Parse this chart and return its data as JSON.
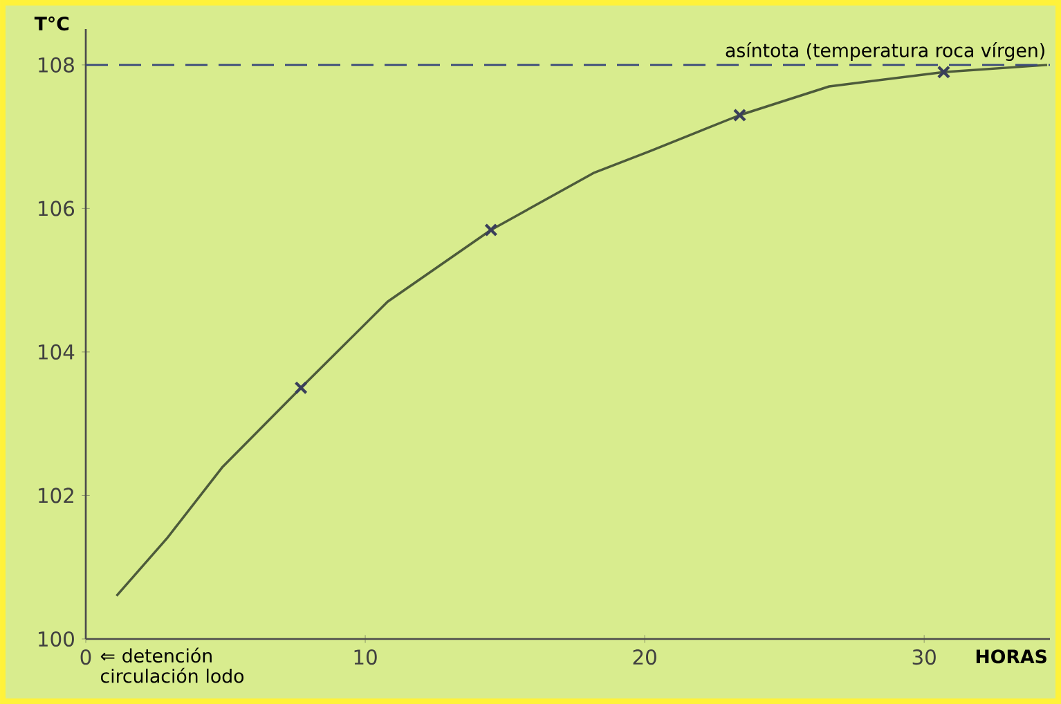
{
  "chart_data": {
    "type": "line",
    "xlabel": "HORAS",
    "ylabel": "T°C",
    "xlim": [
      0,
      34.5
    ],
    "ylim": [
      100,
      108.5
    ],
    "xticks": [
      0,
      10,
      20,
      30
    ],
    "yticks": [
      100,
      102,
      104,
      106,
      108
    ],
    "series": [
      {
        "color": "#4d5b3b",
        "marker": "none",
        "x": [
          1.1,
          2.9,
          4.9,
          7.7,
          10.8,
          14.5,
          18.2,
          20.2,
          23.4,
          26.6,
          30.7,
          34.4
        ],
        "values": [
          100.6,
          101.4,
          102.4,
          103.5,
          104.7,
          105.7,
          106.5,
          106.8,
          107.3,
          107.7,
          107.9,
          108.0
        ]
      },
      {
        "type": "scatter",
        "color": "#3a3f5a",
        "marker": "cross",
        "x": [
          7.7,
          14.5,
          23.4,
          30.7
        ],
        "values": [
          103.5,
          105.7,
          107.3,
          107.9
        ]
      }
    ],
    "ref_lines": [
      {
        "axis": "y",
        "value": 108,
        "label": "asíntota (temperatura roca vírgen)",
        "color": "#3a4a7a",
        "line_style": "dashed"
      }
    ],
    "annotations": [
      "⇐ detención circulación lodo"
    ]
  }
}
